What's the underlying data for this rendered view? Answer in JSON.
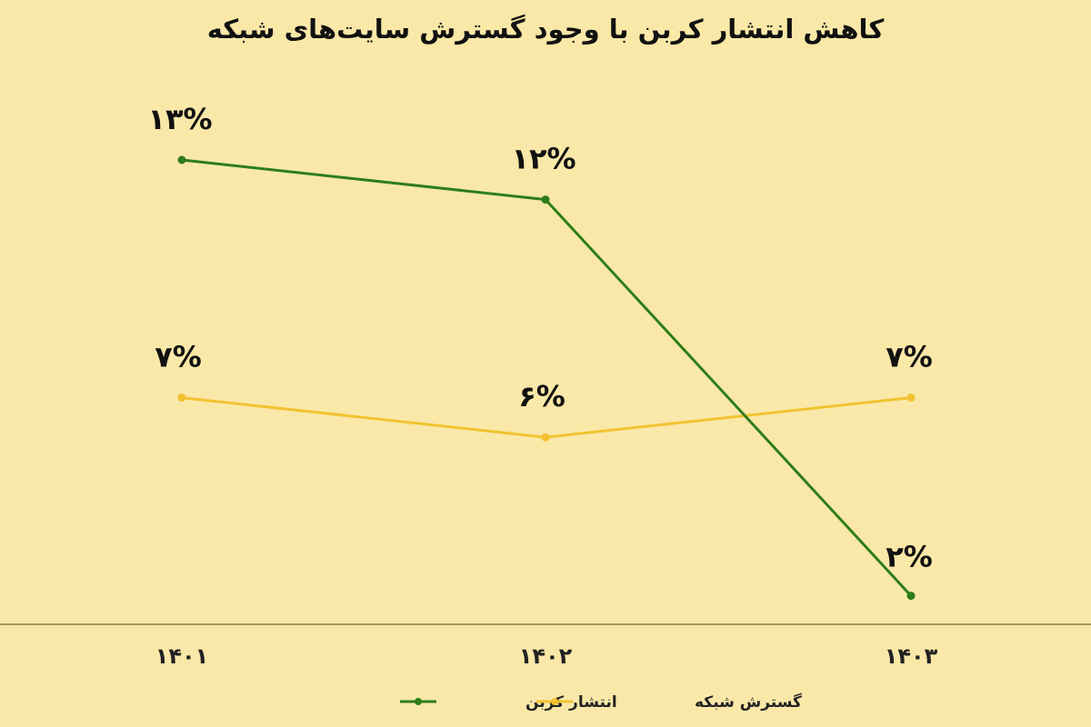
{
  "chart_data": {
    "type": "line",
    "title": "کاهش انتشار کربن با وجود گسترش سایت‌های شبکه",
    "categories": [
      "۱۴۰۱",
      "۱۴۰۲",
      "۱۴۰۳"
    ],
    "series": [
      {
        "name": "انتشار کربن",
        "values": [
          13,
          12,
          2
        ],
        "labels": [
          "۱۳%",
          "۱۲%",
          "۲%"
        ],
        "color": "#2e7d1a"
      },
      {
        "name": "گسترش شبکه",
        "values": [
          7,
          6,
          7
        ],
        "labels": [
          "۷%",
          "۶%",
          "۷%"
        ],
        "color": "#f2c230"
      }
    ],
    "xlabel": "",
    "ylabel": "",
    "ylim": [
      0,
      15
    ],
    "grid": false,
    "legend": "bottom"
  },
  "colors": {
    "background": "#fae8a8",
    "axis": "#8a7a40"
  }
}
